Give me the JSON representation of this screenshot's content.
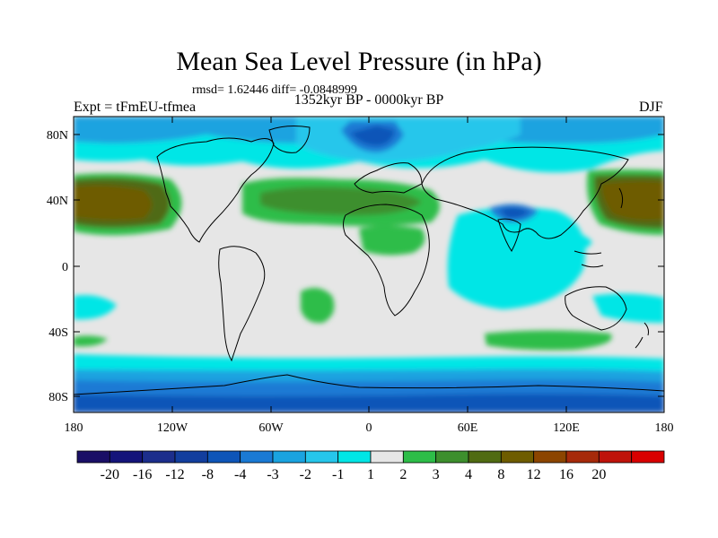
{
  "title": "Mean Sea Level Pressure (in hPa)",
  "stats": "rmsd= 1.62446 diff= -0.0848999",
  "period": "1352kyr BP - 0000kyr BP",
  "experiment": "Expt = tFmEU-tfmea",
  "season": "DJF",
  "lat_labels": [
    "80N",
    "40N",
    "0",
    "40S",
    "80S"
  ],
  "lon_labels": [
    "180",
    "120W",
    "60W",
    "0",
    "60E",
    "120E",
    "180"
  ],
  "colorbar": {
    "colors": [
      "#1a0f66",
      "#14147a",
      "#1c2e8c",
      "#123e9e",
      "#0e55b8",
      "#1a7ad4",
      "#1aa3e0",
      "#26c6eb",
      "#00e6e6",
      "#e6e6e6",
      "#2dbd48",
      "#3d8f2d",
      "#506b12",
      "#6e5c00",
      "#8c4500",
      "#a62a0a",
      "#bf130a",
      "#d90000"
    ],
    "labels": [
      "-20",
      "-16",
      "-12",
      "-8",
      "-4",
      "-3",
      "-2",
      "-1",
      "1",
      "2",
      "3",
      "4",
      "8",
      "12",
      "16",
      "20"
    ]
  }
}
